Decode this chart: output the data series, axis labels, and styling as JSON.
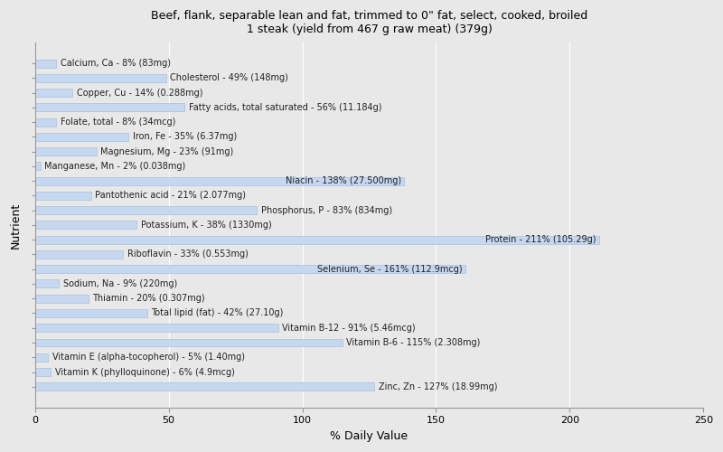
{
  "title": "Beef, flank, separable lean and fat, trimmed to 0\" fat, select, cooked, broiled\n1 steak (yield from 467 g raw meat) (379g)",
  "xlabel": "% Daily Value",
  "ylabel": "Nutrient",
  "xlim": [
    0,
    250
  ],
  "xticks": [
    0,
    50,
    100,
    150,
    200,
    250
  ],
  "background_color": "#e8e8e8",
  "bar_color": "#c5d8f0",
  "bar_edge_color": "#a8c0e0",
  "nutrients": [
    {
      "label": "Calcium, Ca - 8% (83mg)",
      "value": 8
    },
    {
      "label": "Cholesterol - 49% (148mg)",
      "value": 49
    },
    {
      "label": "Copper, Cu - 14% (0.288mg)",
      "value": 14
    },
    {
      "label": "Fatty acids, total saturated - 56% (11.184g)",
      "value": 56
    },
    {
      "label": "Folate, total - 8% (34mcg)",
      "value": 8
    },
    {
      "label": "Iron, Fe - 35% (6.37mg)",
      "value": 35
    },
    {
      "label": "Magnesium, Mg - 23% (91mg)",
      "value": 23
    },
    {
      "label": "Manganese, Mn - 2% (0.038mg)",
      "value": 2
    },
    {
      "label": "Niacin - 138% (27.500mg)",
      "value": 138
    },
    {
      "label": "Pantothenic acid - 21% (2.077mg)",
      "value": 21
    },
    {
      "label": "Phosphorus, P - 83% (834mg)",
      "value": 83
    },
    {
      "label": "Potassium, K - 38% (1330mg)",
      "value": 38
    },
    {
      "label": "Protein - 211% (105.29g)",
      "value": 211
    },
    {
      "label": "Riboflavin - 33% (0.553mg)",
      "value": 33
    },
    {
      "label": "Selenium, Se - 161% (112.9mcg)",
      "value": 161
    },
    {
      "label": "Sodium, Na - 9% (220mg)",
      "value": 9
    },
    {
      "label": "Thiamin - 20% (0.307mg)",
      "value": 20
    },
    {
      "label": "Total lipid (fat) - 42% (27.10g)",
      "value": 42
    },
    {
      "label": "Vitamin B-12 - 91% (5.46mcg)",
      "value": 91
    },
    {
      "label": "Vitamin B-6 - 115% (2.308mg)",
      "value": 115
    },
    {
      "label": "Vitamin E (alpha-tocopherol) - 5% (1.40mg)",
      "value": 5
    },
    {
      "label": "Vitamin K (phylloquinone) - 6% (4.9mcg)",
      "value": 6
    },
    {
      "label": "Zinc, Zn - 127% (18.99mg)",
      "value": 127
    }
  ],
  "label_threshold": 130,
  "title_fontsize": 9,
  "label_fontsize": 7,
  "axis_fontsize": 9,
  "tick_fontsize": 8
}
